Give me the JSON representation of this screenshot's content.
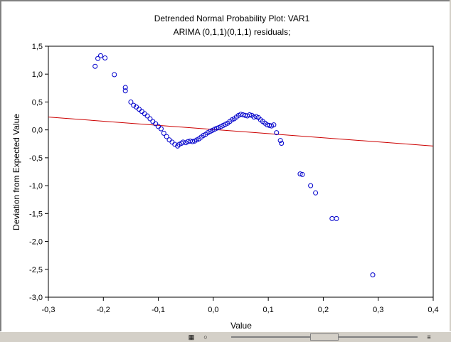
{
  "chart_data": {
    "type": "scatter",
    "title": "Detrended Normal Probability Plot: VAR1",
    "subtitle": "ARIMA (0,1,1)(0,1,1) residuals;",
    "xlabel": "Value",
    "ylabel": "Deviation from Expected Value",
    "xlim": [
      -0.3,
      0.4
    ],
    "ylim": [
      -3.0,
      1.5
    ],
    "x_ticks": [
      "-0,3",
      "-0,2",
      "-0,1",
      "0,0",
      "0,1",
      "0,2",
      "0,3",
      "0,4"
    ],
    "y_ticks": [
      "1,5",
      "1,0",
      "0,5",
      "0,0",
      "-0,5",
      "-1,0",
      "-1,5",
      "-2,0",
      "-2,5",
      "-3,0"
    ],
    "grid": false,
    "fit_line": {
      "x": [
        -0.3,
        0.4
      ],
      "y": [
        0.23,
        -0.29
      ],
      "color": "#cc0000"
    },
    "marker_color": "#0000cc",
    "points": [
      [
        -0.215,
        1.14
      ],
      [
        -0.21,
        1.28
      ],
      [
        -0.205,
        1.33
      ],
      [
        -0.197,
        1.29
      ],
      [
        -0.18,
        0.99
      ],
      [
        -0.16,
        0.76
      ],
      [
        -0.16,
        0.7
      ],
      [
        -0.15,
        0.5
      ],
      [
        -0.145,
        0.44
      ],
      [
        -0.14,
        0.41
      ],
      [
        -0.135,
        0.37
      ],
      [
        -0.13,
        0.33
      ],
      [
        -0.125,
        0.29
      ],
      [
        -0.12,
        0.25
      ],
      [
        -0.115,
        0.2
      ],
      [
        -0.11,
        0.15
      ],
      [
        -0.105,
        0.11
      ],
      [
        -0.1,
        0.06
      ],
      [
        -0.095,
        0.02
      ],
      [
        -0.09,
        -0.06
      ],
      [
        -0.085,
        -0.12
      ],
      [
        -0.08,
        -0.18
      ],
      [
        -0.075,
        -0.22
      ],
      [
        -0.07,
        -0.26
      ],
      [
        -0.065,
        -0.29
      ],
      [
        -0.062,
        -0.26
      ],
      [
        -0.058,
        -0.24
      ],
      [
        -0.055,
        -0.22
      ],
      [
        -0.05,
        -0.23
      ],
      [
        -0.046,
        -0.21
      ],
      [
        -0.042,
        -0.2
      ],
      [
        -0.038,
        -0.21
      ],
      [
        -0.034,
        -0.2
      ],
      [
        -0.03,
        -0.18
      ],
      [
        -0.026,
        -0.16
      ],
      [
        -0.022,
        -0.13
      ],
      [
        -0.018,
        -0.1
      ],
      [
        -0.014,
        -0.08
      ],
      [
        -0.01,
        -0.05
      ],
      [
        -0.006,
        -0.03
      ],
      [
        -0.002,
        -0.01
      ],
      [
        0.002,
        0.01
      ],
      [
        0.006,
        0.03
      ],
      [
        0.01,
        0.04
      ],
      [
        0.014,
        0.06
      ],
      [
        0.018,
        0.08
      ],
      [
        0.022,
        0.1
      ],
      [
        0.026,
        0.12
      ],
      [
        0.03,
        0.15
      ],
      [
        0.034,
        0.18
      ],
      [
        0.038,
        0.2
      ],
      [
        0.042,
        0.23
      ],
      [
        0.046,
        0.26
      ],
      [
        0.05,
        0.28
      ],
      [
        0.054,
        0.27
      ],
      [
        0.058,
        0.26
      ],
      [
        0.062,
        0.25
      ],
      [
        0.066,
        0.27
      ],
      [
        0.07,
        0.26
      ],
      [
        0.074,
        0.23
      ],
      [
        0.078,
        0.24
      ],
      [
        0.082,
        0.22
      ],
      [
        0.086,
        0.18
      ],
      [
        0.09,
        0.15
      ],
      [
        0.094,
        0.12
      ],
      [
        0.098,
        0.09
      ],
      [
        0.102,
        0.08
      ],
      [
        0.106,
        0.07
      ],
      [
        0.11,
        0.09
      ],
      [
        0.115,
        -0.05
      ],
      [
        0.122,
        -0.19
      ],
      [
        0.124,
        -0.24
      ],
      [
        0.158,
        -0.79
      ],
      [
        0.162,
        -0.8
      ],
      [
        0.177,
        -1.0
      ],
      [
        0.186,
        -1.13
      ],
      [
        0.216,
        -1.59
      ],
      [
        0.224,
        -1.59
      ],
      [
        0.29,
        -2.6
      ]
    ]
  },
  "toolbar": {
    "icons": [
      "zoom-icon",
      "cursor-icon"
    ]
  }
}
